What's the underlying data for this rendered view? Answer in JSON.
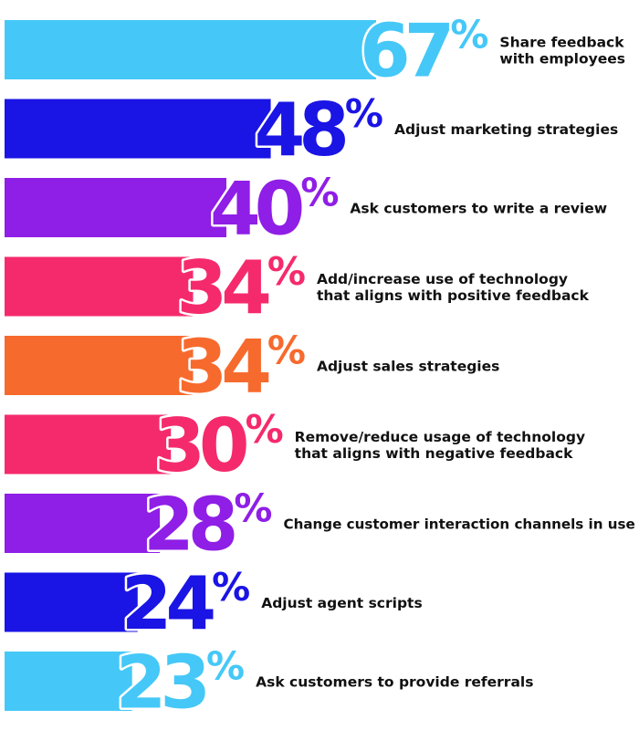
{
  "chart_data": {
    "type": "bar",
    "orientation": "horizontal",
    "value_suffix": "%",
    "categories": [
      [
        "Share feedback",
        "with employees"
      ],
      [
        "Adjust marketing strategies"
      ],
      [
        "Ask customers to write a review"
      ],
      [
        "Add/increase use of technology",
        "that aligns with positive feedback"
      ],
      [
        "Adjust sales strategies"
      ],
      [
        "Remove/reduce usage of technology",
        "that aligns with negative feedback"
      ],
      [
        "Change customer interaction channels in use"
      ],
      [
        "Adjust agent scripts"
      ],
      [
        "Ask customers to provide referrals"
      ]
    ],
    "values": [
      67,
      48,
      40,
      34,
      34,
      30,
      28,
      24,
      23
    ],
    "colors": [
      "#45c8f7",
      "#1a14e4",
      "#8f1ee6",
      "#f52a6c",
      "#f76a2d",
      "#f52a6c",
      "#8f1ee6",
      "#1a14e4",
      "#45c8f7"
    ],
    "title": "",
    "xlabel": "",
    "ylabel": "",
    "xlim": [
      0,
      67
    ],
    "grid": false,
    "legend": "none"
  }
}
